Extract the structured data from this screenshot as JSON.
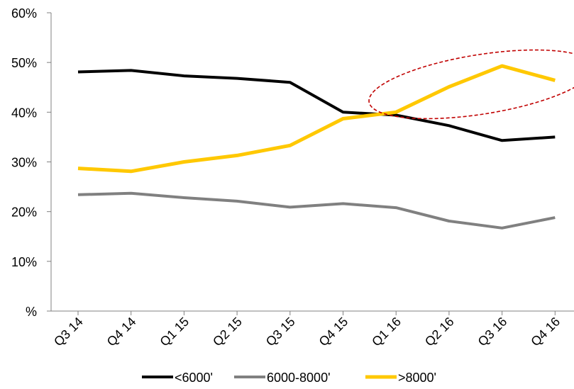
{
  "chart_data": {
    "type": "line",
    "title": "",
    "xlabel": "",
    "ylabel": "",
    "categories": [
      "Q3 14",
      "Q4 14",
      "Q1 15",
      "Q2 15",
      "Q3 15",
      "Q4 15",
      "Q1 16",
      "Q2 16",
      "Q3 16",
      "Q4 16"
    ],
    "y_ticks": [
      "%",
      "10%",
      "20%",
      "30%",
      "40%",
      "50%",
      "60%"
    ],
    "ylim": [
      0,
      60
    ],
    "grid": false,
    "legend_position": "bottom",
    "series": [
      {
        "name": "<6000'",
        "color": "#000000",
        "values": [
          48.1,
          48.4,
          47.3,
          46.8,
          46.0,
          40.0,
          39.4,
          37.3,
          34.3,
          35.0
        ]
      },
      {
        "name": "6000-8000'",
        "color": "#808080",
        "values": [
          23.4,
          23.7,
          22.8,
          22.1,
          20.9,
          21.6,
          20.8,
          18.1,
          16.7,
          18.8
        ]
      },
      {
        "name": ">8000'",
        "color": "#FFC800",
        "values": [
          28.7,
          28.1,
          30.0,
          31.3,
          33.3,
          38.7,
          40.0,
          45.1,
          49.3,
          46.4
        ]
      }
    ],
    "annotations": [
      {
        "type": "dashed-ellipse",
        "color": "#C00000",
        "category_span": [
          "Q1 16",
          "Q4 16"
        ]
      }
    ]
  }
}
